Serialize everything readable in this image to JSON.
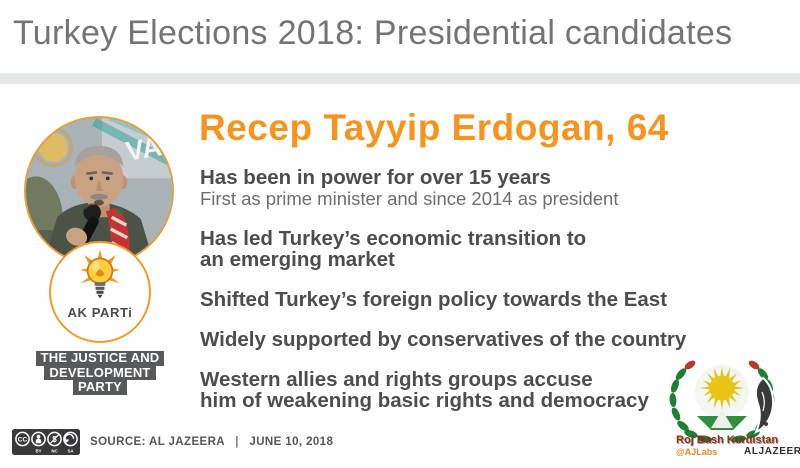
{
  "header": {
    "title": "Turkey Elections 2018: Presidential candidates"
  },
  "candidate": {
    "heading": "Recep Tayyip Erdogan, 64",
    "photo_overlay_text": "VA",
    "party_logo_label": "AK PARTi",
    "party_badge_lines": [
      "THE JUSTICE AND",
      "DEVELOPMENT",
      "PARTY"
    ],
    "facts": [
      {
        "lines": [
          "Has been in power for over 15 years"
        ],
        "sub": "First as prime minister and since 2014 as president"
      },
      {
        "lines": [
          "Has led Turkey’s economic transition to",
          "an emerging market"
        ]
      },
      {
        "lines": [
          "Shifted Turkey’s foreign policy towards the East"
        ]
      },
      {
        "lines": [
          "Widely supported by conservatives of the country"
        ]
      },
      {
        "lines": [
          "Western allies and rights groups accuse",
          "him of weakening basic rights and democracy"
        ]
      }
    ]
  },
  "footer": {
    "cc_label": "CC",
    "license_terms": [
      "BY",
      "NC",
      "SA"
    ],
    "source": "SOURCE: AL JAZEERA",
    "separator": "|",
    "date": "JUNE 10, 2018"
  },
  "watermark": {
    "line1": "Roj Bash Kurdistan",
    "handle": "@AJLabs",
    "brand": "ALJAZEERA"
  },
  "colors": {
    "accent_orange": "#F7941E",
    "text_dark": "#4D4D4F",
    "text_gray": "#6D6E71",
    "badge_gray": "#58595B",
    "band_gray": "#E6E7E8"
  }
}
